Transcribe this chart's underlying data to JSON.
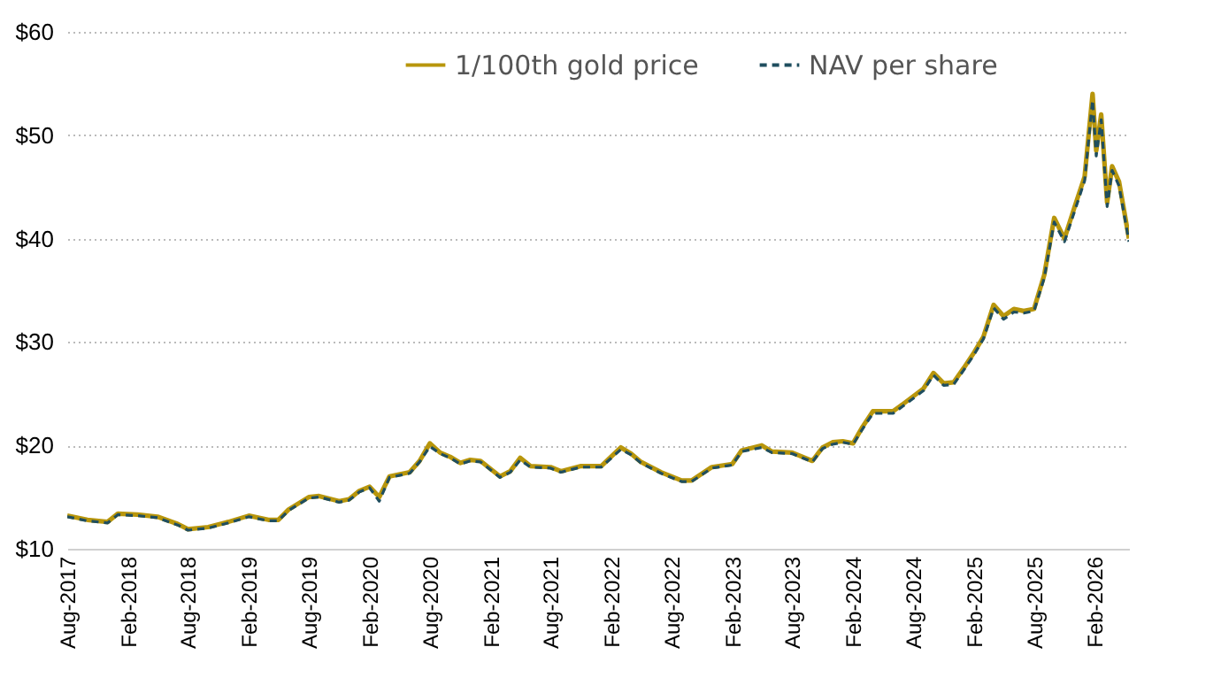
{
  "chart_data": {
    "type": "line",
    "x": [
      "2017-08",
      "2017-10",
      "2017-12",
      "2018-01",
      "2018-03",
      "2018-05",
      "2018-07",
      "2018-08",
      "2018-10",
      "2018-12",
      "2019-02",
      "2019-04",
      "2019-05",
      "2019-06",
      "2019-08",
      "2019-09",
      "2019-11",
      "2019-12",
      "2020-01",
      "2020-02",
      "2020-03",
      "2020-04",
      "2020-06",
      "2020-07",
      "2020-08",
      "2020-09",
      "2020-10",
      "2020-11",
      "2020-12",
      "2021-01",
      "2021-03",
      "2021-04",
      "2021-05",
      "2021-06",
      "2021-08",
      "2021-09",
      "2021-11",
      "2022-01",
      "2022-03",
      "2022-04",
      "2022-05",
      "2022-07",
      "2022-09",
      "2022-10",
      "2022-12",
      "2023-02",
      "2023-03",
      "2023-05",
      "2023-06",
      "2023-08",
      "2023-10",
      "2023-11",
      "2023-12",
      "2024-01",
      "2024-02",
      "2024-03",
      "2024-04",
      "2024-06",
      "2024-07",
      "2024-09",
      "2024-10",
      "2024-11",
      "2024-12",
      "2025-01",
      "2025-02",
      "2025-03",
      "2025-04",
      "2025-05",
      "2025-06",
      "2025-07",
      "2025-08",
      "2025-09",
      "2025-10",
      "2025-11",
      "2025-12",
      "2026-01",
      "2026-01-25",
      "2026-02-05",
      "2026-02-20",
      "2026-03-10",
      "2026-03-25",
      "2026-04-15",
      "2026-05-15"
    ],
    "series": [
      {
        "name": "1/100th gold price",
        "color": "#b8960c",
        "line_style": "solid",
        "values": [
          13.2,
          12.8,
          12.6,
          13.4,
          13.3,
          13.1,
          12.4,
          11.9,
          12.1,
          12.6,
          13.2,
          12.8,
          12.8,
          13.8,
          15.0,
          15.1,
          14.6,
          14.8,
          15.6,
          16.0,
          15.0,
          17.0,
          17.4,
          18.5,
          20.2,
          19.3,
          18.9,
          18.3,
          18.6,
          18.5,
          17.0,
          17.5,
          18.8,
          18.0,
          17.9,
          17.5,
          18.0,
          18.0,
          19.8,
          19.2,
          18.4,
          17.4,
          16.6,
          16.6,
          17.9,
          18.2,
          19.5,
          20.0,
          19.4,
          19.3,
          18.5,
          19.8,
          20.3,
          20.4,
          20.2,
          21.8,
          23.3,
          23.3,
          24.0,
          25.5,
          27.0,
          26.0,
          26.1,
          27.5,
          29.0,
          30.5,
          33.6,
          32.5,
          33.2,
          33.0,
          33.2,
          36.5,
          42.0,
          40.0,
          43.0,
          46.0,
          54.0,
          48.5,
          52.0,
          43.5,
          47.0,
          45.5,
          40.0
        ]
      },
      {
        "name": "NAV per share",
        "color": "#1f4e5f",
        "line_style": "dashed",
        "values": [
          13.1,
          12.7,
          12.5,
          13.3,
          13.2,
          13.0,
          12.3,
          11.8,
          12.0,
          12.5,
          13.1,
          12.7,
          12.7,
          13.7,
          14.9,
          15.0,
          14.5,
          14.7,
          15.5,
          15.9,
          14.6,
          16.9,
          17.3,
          18.4,
          19.9,
          19.2,
          18.8,
          18.2,
          18.5,
          18.4,
          16.9,
          17.4,
          18.6,
          17.9,
          17.8,
          17.4,
          17.9,
          17.9,
          19.6,
          19.1,
          18.3,
          17.3,
          16.5,
          16.5,
          17.8,
          18.1,
          19.4,
          19.8,
          19.3,
          19.2,
          18.4,
          19.7,
          20.1,
          20.3,
          20.1,
          21.6,
          23.1,
          23.1,
          23.8,
          25.3,
          26.8,
          25.8,
          25.9,
          27.3,
          28.8,
          30.3,
          33.3,
          32.2,
          32.9,
          32.8,
          33.0,
          36.2,
          41.6,
          39.7,
          42.6,
          45.6,
          53.4,
          48.0,
          51.5,
          43.1,
          46.6,
          45.1,
          39.7
        ]
      }
    ],
    "xlim": [
      "2017-08",
      "2026-05-15"
    ],
    "xticks": [
      {
        "value": "2017-08",
        "label": "Aug-2017"
      },
      {
        "value": "2018-02",
        "label": "Feb-2018"
      },
      {
        "value": "2018-08",
        "label": "Aug-2018"
      },
      {
        "value": "2019-02",
        "label": "Feb-2019"
      },
      {
        "value": "2019-08",
        "label": "Aug-2019"
      },
      {
        "value": "2020-02",
        "label": "Feb-2020"
      },
      {
        "value": "2020-08",
        "label": "Aug-2020"
      },
      {
        "value": "2021-02",
        "label": "Feb-2021"
      },
      {
        "value": "2021-08",
        "label": "Aug-2021"
      },
      {
        "value": "2022-02",
        "label": "Feb-2022"
      },
      {
        "value": "2022-08",
        "label": "Aug-2022"
      },
      {
        "value": "2023-02",
        "label": "Feb-2023"
      },
      {
        "value": "2023-08",
        "label": "Aug-2023"
      },
      {
        "value": "2024-02",
        "label": "Feb-2024"
      },
      {
        "value": "2024-08",
        "label": "Aug-2024"
      },
      {
        "value": "2025-02",
        "label": "Feb-2025"
      },
      {
        "value": "2025-08",
        "label": "Aug-2025"
      },
      {
        "value": "2026-02",
        "label": "Feb-2026"
      }
    ],
    "ylim": [
      10,
      60
    ],
    "yticks": [
      {
        "value": 10,
        "label": "$10"
      },
      {
        "value": 20,
        "label": "$20"
      },
      {
        "value": 30,
        "label": "$30"
      },
      {
        "value": 40,
        "label": "$40"
      },
      {
        "value": 50,
        "label": "$50"
      },
      {
        "value": 60,
        "label": "$60"
      }
    ],
    "grid": "y",
    "legend": "top",
    "marker": "none"
  }
}
